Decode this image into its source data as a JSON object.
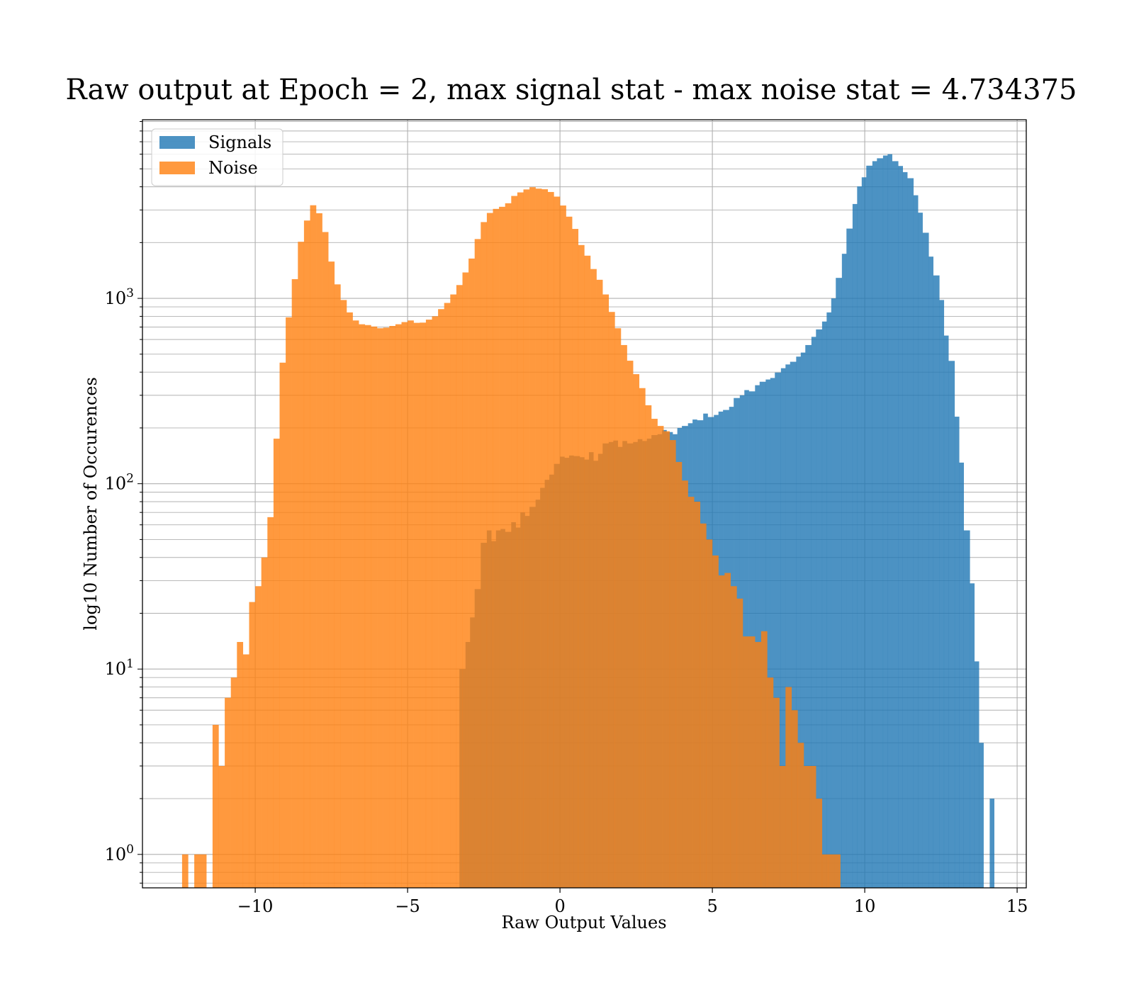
{
  "chart_data": {
    "type": "histogram",
    "title": "Raw output at Epoch = 2, max signal stat - max noise stat = 4.734375",
    "xlabel": "Raw Output Values",
    "ylabel": "log10 Number of Occurences",
    "xlim": [
      -13.7,
      15.3
    ],
    "ylim": [
      0.66,
      9200
    ],
    "yscale": "log",
    "grid": true,
    "legend_position": "upper-left",
    "x_ticks": [
      -10,
      -5,
      0,
      5,
      10,
      15
    ],
    "x_tick_labels": [
      "−10",
      "−5",
      "0",
      "5",
      "10",
      "15"
    ],
    "y_ticks": [
      1,
      10,
      100,
      1000
    ],
    "y_tick_labels": [
      {
        "base": "10",
        "exp": "0"
      },
      {
        "base": "10",
        "exp": "1"
      },
      {
        "base": "10",
        "exp": "2"
      },
      {
        "base": "10",
        "exp": "3"
      }
    ],
    "series": [
      {
        "name": "Signals",
        "color": "#1f77b4",
        "bins": [
          [
            -3.3,
            -3.1,
            10
          ],
          [
            -3.1,
            -2.95,
            14
          ],
          [
            -2.95,
            -2.8,
            19
          ],
          [
            -2.8,
            -2.6,
            27
          ],
          [
            -2.6,
            -2.4,
            48
          ],
          [
            -2.4,
            -2.25,
            56
          ],
          [
            -2.25,
            -2.1,
            49
          ],
          [
            -2.1,
            -1.95,
            56
          ],
          [
            -1.95,
            -1.8,
            57
          ],
          [
            -1.8,
            -1.6,
            55
          ],
          [
            -1.6,
            -1.45,
            62
          ],
          [
            -1.45,
            -1.3,
            58
          ],
          [
            -1.3,
            -1.15,
            70
          ],
          [
            -1.15,
            -1.0,
            67
          ],
          [
            -1.0,
            -0.8,
            75
          ],
          [
            -0.8,
            -0.65,
            82
          ],
          [
            -0.65,
            -0.5,
            95
          ],
          [
            -0.5,
            -0.35,
            105
          ],
          [
            -0.35,
            -0.2,
            112
          ],
          [
            -0.2,
            0.0,
            128
          ],
          [
            0.0,
            0.15,
            140
          ],
          [
            0.15,
            0.3,
            138
          ],
          [
            0.3,
            0.45,
            142
          ],
          [
            0.45,
            0.65,
            141
          ],
          [
            0.65,
            0.8,
            139
          ],
          [
            0.8,
            0.95,
            135
          ],
          [
            0.95,
            1.1,
            148
          ],
          [
            1.1,
            1.25,
            133
          ],
          [
            1.25,
            1.4,
            145
          ],
          [
            1.4,
            1.6,
            165
          ],
          [
            1.6,
            1.75,
            168
          ],
          [
            1.75,
            1.9,
            171
          ],
          [
            1.9,
            2.05,
            158
          ],
          [
            2.05,
            2.2,
            170
          ],
          [
            2.2,
            2.4,
            165
          ],
          [
            2.4,
            2.55,
            168
          ],
          [
            2.55,
            2.7,
            174
          ],
          [
            2.7,
            2.85,
            170
          ],
          [
            2.85,
            3.0,
            175
          ],
          [
            3.0,
            3.2,
            183
          ],
          [
            3.2,
            3.35,
            185
          ],
          [
            3.35,
            3.5,
            195
          ],
          [
            3.5,
            3.7,
            190
          ],
          [
            3.7,
            3.85,
            185
          ],
          [
            3.85,
            4.0,
            200
          ],
          [
            4.0,
            4.2,
            205
          ],
          [
            4.2,
            4.35,
            212
          ],
          [
            4.35,
            4.5,
            222
          ],
          [
            4.5,
            4.7,
            220
          ],
          [
            4.7,
            4.85,
            239
          ],
          [
            4.85,
            5.05,
            229
          ],
          [
            5.05,
            5.2,
            235
          ],
          [
            5.2,
            5.35,
            245
          ],
          [
            5.35,
            5.55,
            250
          ],
          [
            5.55,
            5.7,
            260
          ],
          [
            5.7,
            5.9,
            290
          ],
          [
            5.9,
            6.05,
            300
          ],
          [
            6.05,
            6.2,
            320
          ],
          [
            6.2,
            6.4,
            315
          ],
          [
            6.4,
            6.55,
            340
          ],
          [
            6.55,
            6.75,
            355
          ],
          [
            6.75,
            6.9,
            365
          ],
          [
            6.9,
            7.05,
            372
          ],
          [
            7.05,
            7.25,
            398
          ],
          [
            7.25,
            7.4,
            420
          ],
          [
            7.4,
            7.55,
            440
          ],
          [
            7.55,
            7.75,
            455
          ],
          [
            7.75,
            7.9,
            485
          ],
          [
            7.9,
            8.05,
            510
          ],
          [
            8.05,
            8.25,
            560
          ],
          [
            8.25,
            8.4,
            620
          ],
          [
            8.4,
            8.6,
            680
          ],
          [
            8.6,
            8.75,
            750
          ],
          [
            8.75,
            8.9,
            840
          ],
          [
            8.9,
            9.05,
            1000
          ],
          [
            9.05,
            9.25,
            1290
          ],
          [
            9.25,
            9.4,
            1740
          ],
          [
            9.4,
            9.6,
            2380
          ],
          [
            9.6,
            9.75,
            3230
          ],
          [
            9.75,
            9.9,
            4020
          ],
          [
            9.9,
            10.05,
            4500
          ],
          [
            10.05,
            10.25,
            5200
          ],
          [
            10.25,
            10.4,
            5500
          ],
          [
            10.4,
            10.6,
            5700
          ],
          [
            10.6,
            10.75,
            5900
          ],
          [
            10.75,
            10.9,
            6000
          ],
          [
            10.9,
            11.1,
            5500
          ],
          [
            11.1,
            11.25,
            5180
          ],
          [
            11.25,
            11.4,
            4800
          ],
          [
            11.4,
            11.6,
            4450
          ],
          [
            11.6,
            11.75,
            3600
          ],
          [
            11.75,
            11.9,
            2900
          ],
          [
            11.9,
            12.1,
            2260
          ],
          [
            12.1,
            12.25,
            1680
          ],
          [
            12.25,
            12.45,
            1330
          ],
          [
            12.45,
            12.6,
            980
          ],
          [
            12.6,
            12.75,
            630
          ],
          [
            12.75,
            12.95,
            460
          ],
          [
            12.95,
            13.1,
            230
          ],
          [
            13.1,
            13.25,
            130
          ],
          [
            13.25,
            13.45,
            56
          ],
          [
            13.45,
            13.6,
            29
          ],
          [
            13.6,
            13.75,
            11
          ],
          [
            13.75,
            13.9,
            4
          ],
          [
            13.9,
            14.1,
            0
          ],
          [
            14.1,
            14.25,
            2
          ]
        ]
      },
      {
        "name": "Noise",
        "color": "#ff7f0e",
        "bins": [
          [
            -12.4,
            -12.2,
            1
          ],
          [
            -12.2,
            -12.0,
            0
          ],
          [
            -12.0,
            -11.6,
            1
          ],
          [
            -11.6,
            -11.4,
            0
          ],
          [
            -11.4,
            -11.2,
            5
          ],
          [
            -11.2,
            -11.0,
            3
          ],
          [
            -11.0,
            -10.8,
            7
          ],
          [
            -10.8,
            -10.6,
            9
          ],
          [
            -10.6,
            -10.4,
            14
          ],
          [
            -10.4,
            -10.2,
            12
          ],
          [
            -10.2,
            -10.0,
            23
          ],
          [
            -10.0,
            -9.8,
            28
          ],
          [
            -9.8,
            -9.6,
            40
          ],
          [
            -9.6,
            -9.4,
            66
          ],
          [
            -9.4,
            -9.2,
            175
          ],
          [
            -9.2,
            -9.0,
            450
          ],
          [
            -9.0,
            -8.8,
            790
          ],
          [
            -8.8,
            -8.6,
            1270
          ],
          [
            -8.6,
            -8.4,
            2020
          ],
          [
            -8.4,
            -8.2,
            2630
          ],
          [
            -8.2,
            -8.0,
            3180
          ],
          [
            -8.0,
            -7.8,
            2880
          ],
          [
            -7.8,
            -7.6,
            2280
          ],
          [
            -7.6,
            -7.4,
            1580
          ],
          [
            -7.4,
            -7.2,
            1190
          ],
          [
            -7.2,
            -7.0,
            980
          ],
          [
            -7.0,
            -6.8,
            840
          ],
          [
            -6.8,
            -6.6,
            760
          ],
          [
            -6.6,
            -6.4,
            725
          ],
          [
            -6.4,
            -6.2,
            718
          ],
          [
            -6.2,
            -6.0,
            705
          ],
          [
            -6.0,
            -5.8,
            690
          ],
          [
            -5.8,
            -5.6,
            695
          ],
          [
            -5.6,
            -5.4,
            710
          ],
          [
            -5.4,
            -5.2,
            725
          ],
          [
            -5.2,
            -5.0,
            745
          ],
          [
            -5.0,
            -4.8,
            760
          ],
          [
            -4.8,
            -4.6,
            738
          ],
          [
            -4.6,
            -4.4,
            740
          ],
          [
            -4.4,
            -4.2,
            768
          ],
          [
            -4.2,
            -4.0,
            800
          ],
          [
            -4.0,
            -3.8,
            875
          ],
          [
            -3.8,
            -3.6,
            945
          ],
          [
            -3.6,
            -3.4,
            1050
          ],
          [
            -3.4,
            -3.2,
            1180
          ],
          [
            -3.2,
            -3.0,
            1380
          ],
          [
            -3.0,
            -2.8,
            1640
          ],
          [
            -2.8,
            -2.6,
            2090
          ],
          [
            -2.6,
            -2.4,
            2580
          ],
          [
            -2.4,
            -2.2,
            2890
          ],
          [
            -2.2,
            -2.0,
            3040
          ],
          [
            -2.0,
            -1.8,
            3120
          ],
          [
            -1.8,
            -1.6,
            3260
          ],
          [
            -1.6,
            -1.4,
            3570
          ],
          [
            -1.4,
            -1.2,
            3730
          ],
          [
            -1.2,
            -1.0,
            3870
          ],
          [
            -1.0,
            -0.8,
            3980
          ],
          [
            -0.8,
            -0.6,
            3910
          ],
          [
            -0.6,
            -0.4,
            3880
          ],
          [
            -0.4,
            -0.2,
            3750
          ],
          [
            -0.2,
            0.0,
            3540
          ],
          [
            0.0,
            0.2,
            3170
          ],
          [
            0.2,
            0.4,
            2760
          ],
          [
            0.4,
            0.6,
            2370
          ],
          [
            0.6,
            0.8,
            1940
          ],
          [
            0.8,
            1.0,
            1700
          ],
          [
            1.0,
            1.2,
            1440
          ],
          [
            1.2,
            1.4,
            1260
          ],
          [
            1.4,
            1.6,
            1050
          ],
          [
            1.6,
            1.8,
            845
          ],
          [
            1.8,
            2.0,
            690
          ],
          [
            2.0,
            2.2,
            560
          ],
          [
            2.2,
            2.4,
            461
          ],
          [
            2.4,
            2.6,
            390
          ],
          [
            2.6,
            2.8,
            328
          ],
          [
            2.8,
            3.0,
            265
          ],
          [
            3.0,
            3.2,
            224
          ],
          [
            3.2,
            3.4,
            205
          ],
          [
            3.4,
            3.6,
            192
          ],
          [
            3.6,
            3.8,
            172
          ],
          [
            3.8,
            4.0,
            131
          ],
          [
            4.0,
            4.2,
            104
          ],
          [
            4.2,
            4.4,
            85
          ],
          [
            4.4,
            4.6,
            80
          ],
          [
            4.6,
            4.8,
            61
          ],
          [
            4.8,
            5.0,
            50
          ],
          [
            5.0,
            5.2,
            41
          ],
          [
            5.2,
            5.4,
            32
          ],
          [
            5.4,
            5.6,
            33
          ],
          [
            5.6,
            5.8,
            28
          ],
          [
            5.8,
            6.0,
            24
          ],
          [
            6.0,
            6.2,
            15
          ],
          [
            6.2,
            6.4,
            15
          ],
          [
            6.4,
            6.6,
            14
          ],
          [
            6.6,
            6.8,
            16
          ],
          [
            6.8,
            7.0,
            9
          ],
          [
            7.0,
            7.2,
            7
          ],
          [
            7.2,
            7.4,
            3
          ],
          [
            7.4,
            7.6,
            8
          ],
          [
            7.6,
            7.8,
            6
          ],
          [
            7.8,
            8.0,
            4
          ],
          [
            8.0,
            8.2,
            3
          ],
          [
            8.2,
            8.4,
            3
          ],
          [
            8.4,
            8.6,
            2
          ],
          [
            8.6,
            8.8,
            1
          ],
          [
            8.8,
            9.0,
            1
          ],
          [
            9.0,
            9.2,
            1
          ]
        ]
      }
    ]
  }
}
